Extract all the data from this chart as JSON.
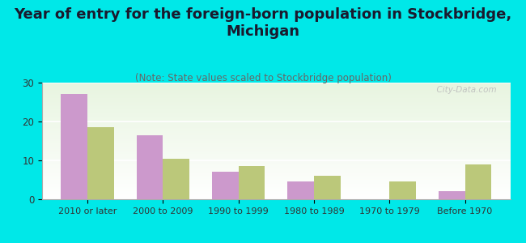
{
  "title": "Year of entry for the foreign-born population in Stockbridge,\nMichigan",
  "subtitle": "(Note: State values scaled to Stockbridge population)",
  "categories": [
    "2010 or later",
    "2000 to 2009",
    "1990 to 1999",
    "1980 to 1989",
    "1970 to 1979",
    "Before 1970"
  ],
  "stockbridge_values": [
    27,
    16.5,
    7,
    4.5,
    0,
    2
  ],
  "michigan_values": [
    18.5,
    10.5,
    8.5,
    6,
    4.5,
    9
  ],
  "stockbridge_color": "#cc99cc",
  "michigan_color": "#bbc87a",
  "background_color": "#00e8e8",
  "ylim": [
    0,
    30
  ],
  "yticks": [
    0,
    10,
    20,
    30
  ],
  "bar_width": 0.35,
  "title_fontsize": 13,
  "subtitle_fontsize": 8.5,
  "legend_fontsize": 10,
  "watermark": "  City-Data.com"
}
